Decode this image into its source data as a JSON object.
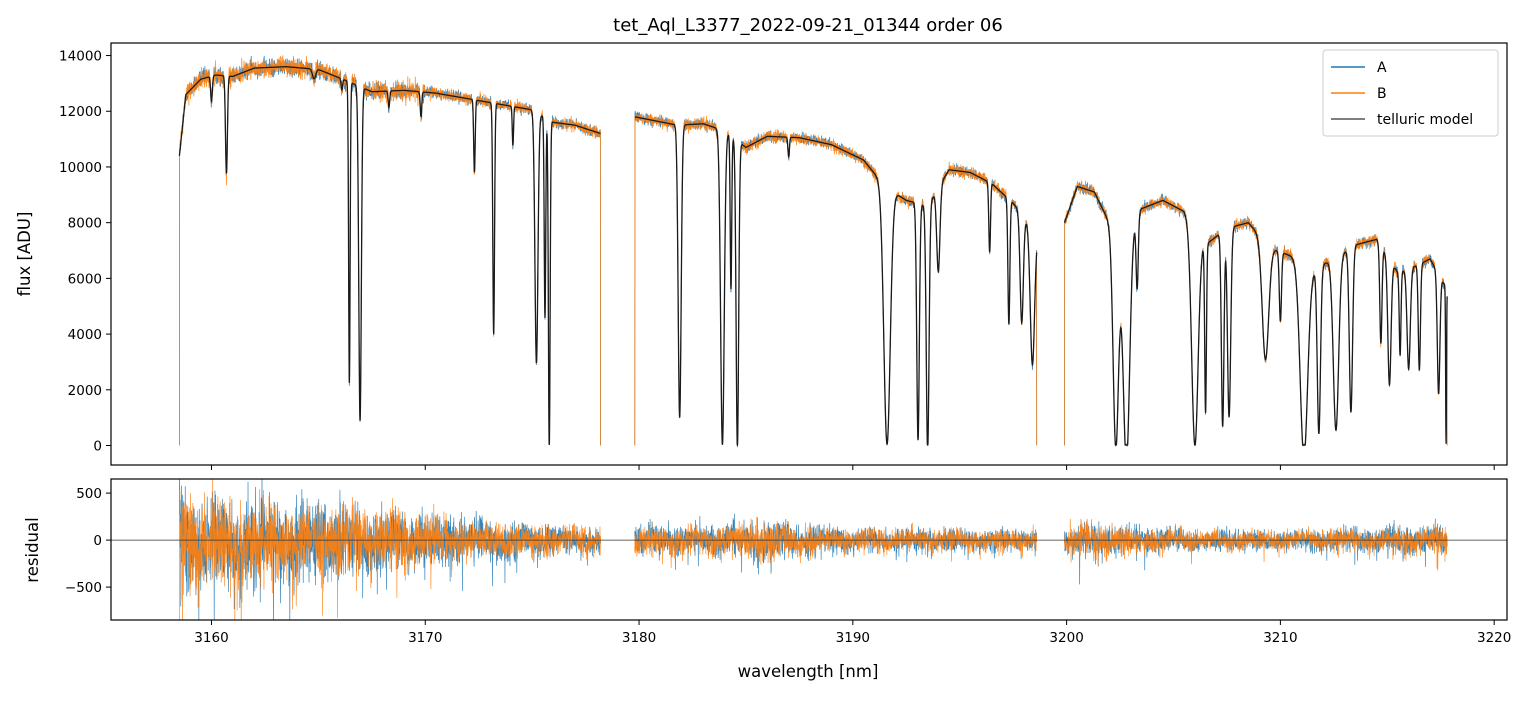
{
  "title": "tet_Aql_L3377_2022-09-21_01344  order 06",
  "chart_data": [
    {
      "type": "line",
      "title": "tet_Aql_L3377_2022-09-21_01344  order 06",
      "xlabel": "",
      "ylabel": "flux [ADU]",
      "xlim": [
        3155.3,
        3220.6
      ],
      "ylim": [
        -700,
        14450
      ],
      "yticks": [
        0,
        2000,
        4000,
        6000,
        8000,
        10000,
        12000,
        14000
      ],
      "ytick_labels": [
        "0",
        "2000",
        "4000",
        "6000",
        "8000",
        "10000",
        "12000",
        "14000"
      ],
      "legend": {
        "position": "top-right",
        "entries": [
          "A",
          "B",
          "telluric model"
        ]
      },
      "series_colors": {
        "A": "#1f77b4",
        "B": "#ff7f0e",
        "telluric model": "#000000"
      },
      "x_gaps": [
        [
          3178.2,
          3179.8
        ],
        [
          3198.6,
          3199.9
        ]
      ],
      "continuum": [
        [
          3158.5,
          10400
        ],
        [
          3158.8,
          12600
        ],
        [
          3159.5,
          13150
        ],
        [
          3160.2,
          13300
        ],
        [
          3161.0,
          13250
        ],
        [
          3162.0,
          13550
        ],
        [
          3163.5,
          13600
        ],
        [
          3165.0,
          13500
        ],
        [
          3166.3,
          13100
        ],
        [
          3167.5,
          12700
        ],
        [
          3169.0,
          12750
        ],
        [
          3170.5,
          12650
        ],
        [
          3172.0,
          12450
        ],
        [
          3173.5,
          12250
        ],
        [
          3175.0,
          12050
        ],
        [
          3176.0,
          11600
        ],
        [
          3177.0,
          11500
        ],
        [
          3178.2,
          11200
        ],
        [
          3179.8,
          11800
        ],
        [
          3180.8,
          11650
        ],
        [
          3181.8,
          11500
        ],
        [
          3183.0,
          11550
        ],
        [
          3184.0,
          11300
        ],
        [
          3185.0,
          10700
        ],
        [
          3186.0,
          11100
        ],
        [
          3187.5,
          11050
        ],
        [
          3189.0,
          10800
        ],
        [
          3190.5,
          10250
        ],
        [
          3191.5,
          9300
        ],
        [
          3192.5,
          8800
        ],
        [
          3193.5,
          8600
        ],
        [
          3194.5,
          9900
        ],
        [
          3195.5,
          9800
        ],
        [
          3196.5,
          9400
        ],
        [
          3197.5,
          8700
        ],
        [
          3198.6,
          7600
        ],
        [
          3199.9,
          8000
        ],
        [
          3200.5,
          9300
        ],
        [
          3201.3,
          9100
        ],
        [
          3202.5,
          7200
        ],
        [
          3203.5,
          8500
        ],
        [
          3204.5,
          8800
        ],
        [
          3205.5,
          8400
        ],
        [
          3206.5,
          7200
        ],
        [
          3207.5,
          7800
        ],
        [
          3208.5,
          8000
        ],
        [
          3209.5,
          7100
        ],
        [
          3210.5,
          6800
        ],
        [
          3211.5,
          6300
        ],
        [
          3212.5,
          6700
        ],
        [
          3213.5,
          7200
        ],
        [
          3214.5,
          7400
        ],
        [
          3215.5,
          6200
        ],
        [
          3216.5,
          6500
        ],
        [
          3217.0,
          6700
        ],
        [
          3217.8,
          5600
        ]
      ],
      "absorption_lines": [
        [
          3160.0,
          900,
          0.08
        ],
        [
          3160.7,
          3500,
          0.09
        ],
        [
          3164.8,
          350,
          0.15
        ],
        [
          3166.1,
          400,
          0.07
        ],
        [
          3166.45,
          10800,
          0.07
        ],
        [
          3166.95,
          12000,
          0.12
        ],
        [
          3168.3,
          600,
          0.07
        ],
        [
          3169.8,
          900,
          0.07
        ],
        [
          3172.3,
          2600,
          0.07
        ],
        [
          3173.2,
          8300,
          0.08
        ],
        [
          3174.1,
          1400,
          0.06
        ],
        [
          3175.2,
          9000,
          0.14
        ],
        [
          3175.6,
          7200,
          0.07
        ],
        [
          3175.8,
          11800,
          0.08
        ],
        [
          3181.9,
          10500,
          0.14
        ],
        [
          3183.9,
          11300,
          0.17
        ],
        [
          3184.3,
          5500,
          0.07
        ],
        [
          3184.6,
          11000,
          0.12
        ],
        [
          3187.0,
          700,
          0.07
        ],
        [
          3191.6,
          9200,
          0.3
        ],
        [
          3193.05,
          8500,
          0.12
        ],
        [
          3193.5,
          8800,
          0.13
        ],
        [
          3194.0,
          3000,
          0.15
        ],
        [
          3196.4,
          2500,
          0.08
        ],
        [
          3197.3,
          4500,
          0.09
        ],
        [
          3197.9,
          3900,
          0.15
        ],
        [
          3198.4,
          4900,
          0.2
        ],
        [
          3202.3,
          7600,
          0.25
        ],
        [
          3202.8,
          8200,
          0.3
        ],
        [
          3203.3,
          2600,
          0.1
        ],
        [
          3206.0,
          7800,
          0.3
        ],
        [
          3206.5,
          6000,
          0.08
        ],
        [
          3207.3,
          7000,
          0.12
        ],
        [
          3207.6,
          6800,
          0.15
        ],
        [
          3209.3,
          4200,
          0.3
        ],
        [
          3210.0,
          2500,
          0.1
        ],
        [
          3211.1,
          6900,
          0.35
        ],
        [
          3211.8,
          6000,
          0.15
        ],
        [
          3212.6,
          6200,
          0.25
        ],
        [
          3213.3,
          5900,
          0.15
        ],
        [
          3214.7,
          3500,
          0.1
        ],
        [
          3215.1,
          4500,
          0.15
        ],
        [
          3215.6,
          3000,
          0.08
        ],
        [
          3216.0,
          3600,
          0.15
        ],
        [
          3216.5,
          3800,
          0.1
        ],
        [
          3217.4,
          4300,
          0.12
        ],
        [
          3217.75,
          5600,
          0.04
        ]
      ]
    },
    {
      "type": "line",
      "title": "",
      "xlabel": "wavelength [nm]",
      "ylabel": "residual",
      "xlim": [
        3155.3,
        3220.6
      ],
      "ylim": [
        -850,
        650
      ],
      "xticks": [
        3160,
        3170,
        3180,
        3190,
        3200,
        3210,
        3220
      ],
      "xtick_labels": [
        "3160",
        "3170",
        "3180",
        "3190",
        "3200",
        "3210",
        "3220"
      ],
      "yticks": [
        -500,
        0,
        500
      ],
      "ytick_labels": [
        "−500",
        "0",
        "500"
      ],
      "zero_line": true,
      "series_colors": {
        "A": "#1f77b4",
        "B": "#ff7f0e"
      },
      "residual_ranges": [
        [
          3158.5,
          3178.2
        ],
        [
          3179.8,
          3198.6
        ],
        [
          3199.9,
          3217.8
        ]
      ],
      "residual_amplitude": [
        [
          3158.5,
          750
        ],
        [
          3160.0,
          600
        ],
        [
          3163.0,
          550
        ],
        [
          3166.0,
          500
        ],
        [
          3168.0,
          420
        ],
        [
          3171.0,
          300
        ],
        [
          3175.0,
          220
        ],
        [
          3178.2,
          180
        ],
        [
          3179.8,
          200
        ],
        [
          3183.0,
          200
        ],
        [
          3186.0,
          260
        ],
        [
          3190.0,
          160
        ],
        [
          3195.0,
          150
        ],
        [
          3198.6,
          140
        ],
        [
          3199.9,
          250
        ],
        [
          3205.0,
          150
        ],
        [
          3210.0,
          130
        ],
        [
          3217.8,
          200
        ]
      ]
    }
  ]
}
